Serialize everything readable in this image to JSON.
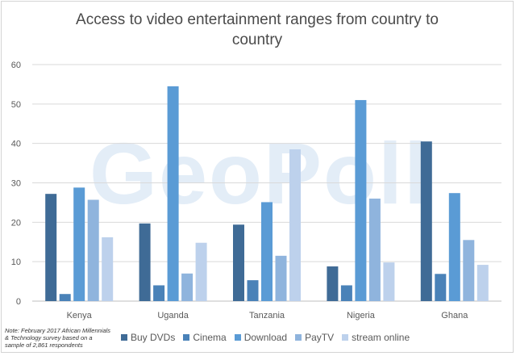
{
  "title": "Access to video entertainment ranges from country to country",
  "watermark": "GeoPoll",
  "note": "Note: February 2017 African Millennials & Technology survey based on a sample of 2,861 respondents",
  "chart_data": {
    "type": "bar",
    "title": "Access to video entertainment ranges from country to country",
    "categories": [
      "Kenya",
      "Uganda",
      "Tanzania",
      "Nigeria",
      "Ghana"
    ],
    "ylim": [
      0,
      60
    ],
    "yticks": [
      "0",
      "10",
      "20",
      "30",
      "40",
      "50",
      "60"
    ],
    "grid": true,
    "legend": "bottom",
    "series": [
      {
        "name": "Buy DVDs",
        "color": "#3f6b96",
        "values": [
          27.2,
          19.7,
          19.4,
          8.8,
          40.5
        ]
      },
      {
        "name": "Cinema",
        "color": "#4a82b8",
        "values": [
          1.8,
          4.0,
          5.3,
          4.0,
          6.9
        ]
      },
      {
        "name": "Download",
        "color": "#5a9bd5",
        "values": [
          28.8,
          54.5,
          25.1,
          51.0,
          27.4
        ]
      },
      {
        "name": "PayTV",
        "color": "#8fb4dd",
        "values": [
          25.7,
          7.0,
          11.5,
          26.0,
          15.5
        ]
      },
      {
        "name": "stream online",
        "color": "#bdd1ec",
        "values": [
          16.2,
          14.8,
          38.5,
          9.8,
          9.2
        ]
      }
    ]
  }
}
